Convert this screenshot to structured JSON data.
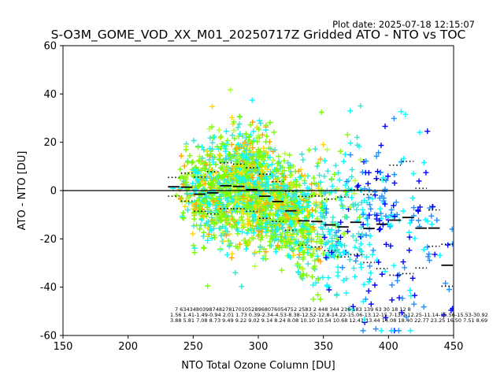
{
  "plot_date": "Plot date: 2025-07-18 12:15:07",
  "chart_data": {
    "type": "scatter",
    "title": "S-O3M_GOME_VOD_XX_M01_20250717Z Gridded ATO - NTO vs TOC",
    "xlabel": "NTO Total Ozone Column [DU]",
    "ylabel": "ATO - NTO [DU]",
    "xlim": [
      150,
      450
    ],
    "ylim": [
      -60,
      60
    ],
    "xticks": [
      150,
      200,
      250,
      300,
      350,
      400,
      450
    ],
    "yticks": [
      -60,
      -40,
      -20,
      0,
      20,
      40,
      60
    ],
    "reference_line_y": 0,
    "marker": "+",
    "point_colors": [
      "#0000ff",
      "#1e90ff",
      "#00ffff",
      "#40e0d0",
      "#7cfc00",
      "#adff2f",
      "#ffd700",
      "#ffa500"
    ],
    "bin_edges": [
      230,
      240,
      250,
      260,
      270,
      280,
      290,
      300,
      310,
      320,
      330,
      340,
      350,
      360,
      370,
      380,
      390,
      400,
      410,
      420,
      430,
      440,
      450
    ],
    "bin_mean": [
      1.56,
      1.41,
      -1.49,
      -0.94,
      2.01,
      1.73,
      0.39,
      -2.34,
      -4.53,
      -8.38,
      -12.52,
      -12.8,
      -14.22,
      -15.06,
      -13.12,
      -15.7,
      -13.9,
      -12.25,
      -11.14,
      -15.56,
      -15.53,
      -30.92
    ],
    "bin_std": [
      3.88,
      5.81,
      7.08,
      8.73,
      9.49,
      9.22,
      9.02,
      9.14,
      8.24,
      8.08,
      10.1,
      10.54,
      10.68,
      12.41,
      13.44,
      14.08,
      18.4,
      22.77,
      23.25,
      16.5,
      7.51,
      8.69
    ],
    "bin_count": [
      "7",
      "634",
      "3480",
      "3987",
      "4827",
      "8170",
      "10528",
      "9680",
      "7605",
      "4752",
      "2583",
      "2",
      "448",
      "344",
      "216",
      "183",
      "139",
      "63",
      "30",
      "18",
      "12",
      "8"
    ],
    "count_row_text": "7    634348039874827817010528968076054752 2583 2   448   344   216  183   139   63    30    18     12    8",
    "mean_row_text": "1.56 1.41-1.49-0.94 2.01 1.73 0.39-2.34-4.53-8.38-12.52-12.8-14.22-15.06-13.12-15.7-13.9-12.25-11.14-15.56-15.53-30.92",
    "std_row_text": "3.88 5.81 7.08 8.73 9.49 9.22 9.02 9.14 8.24 8.08 10.10 10.54 10.68 12.41 13.44 14.08 18.40 22.77 23.25 16.50 7.51 8.69"
  }
}
